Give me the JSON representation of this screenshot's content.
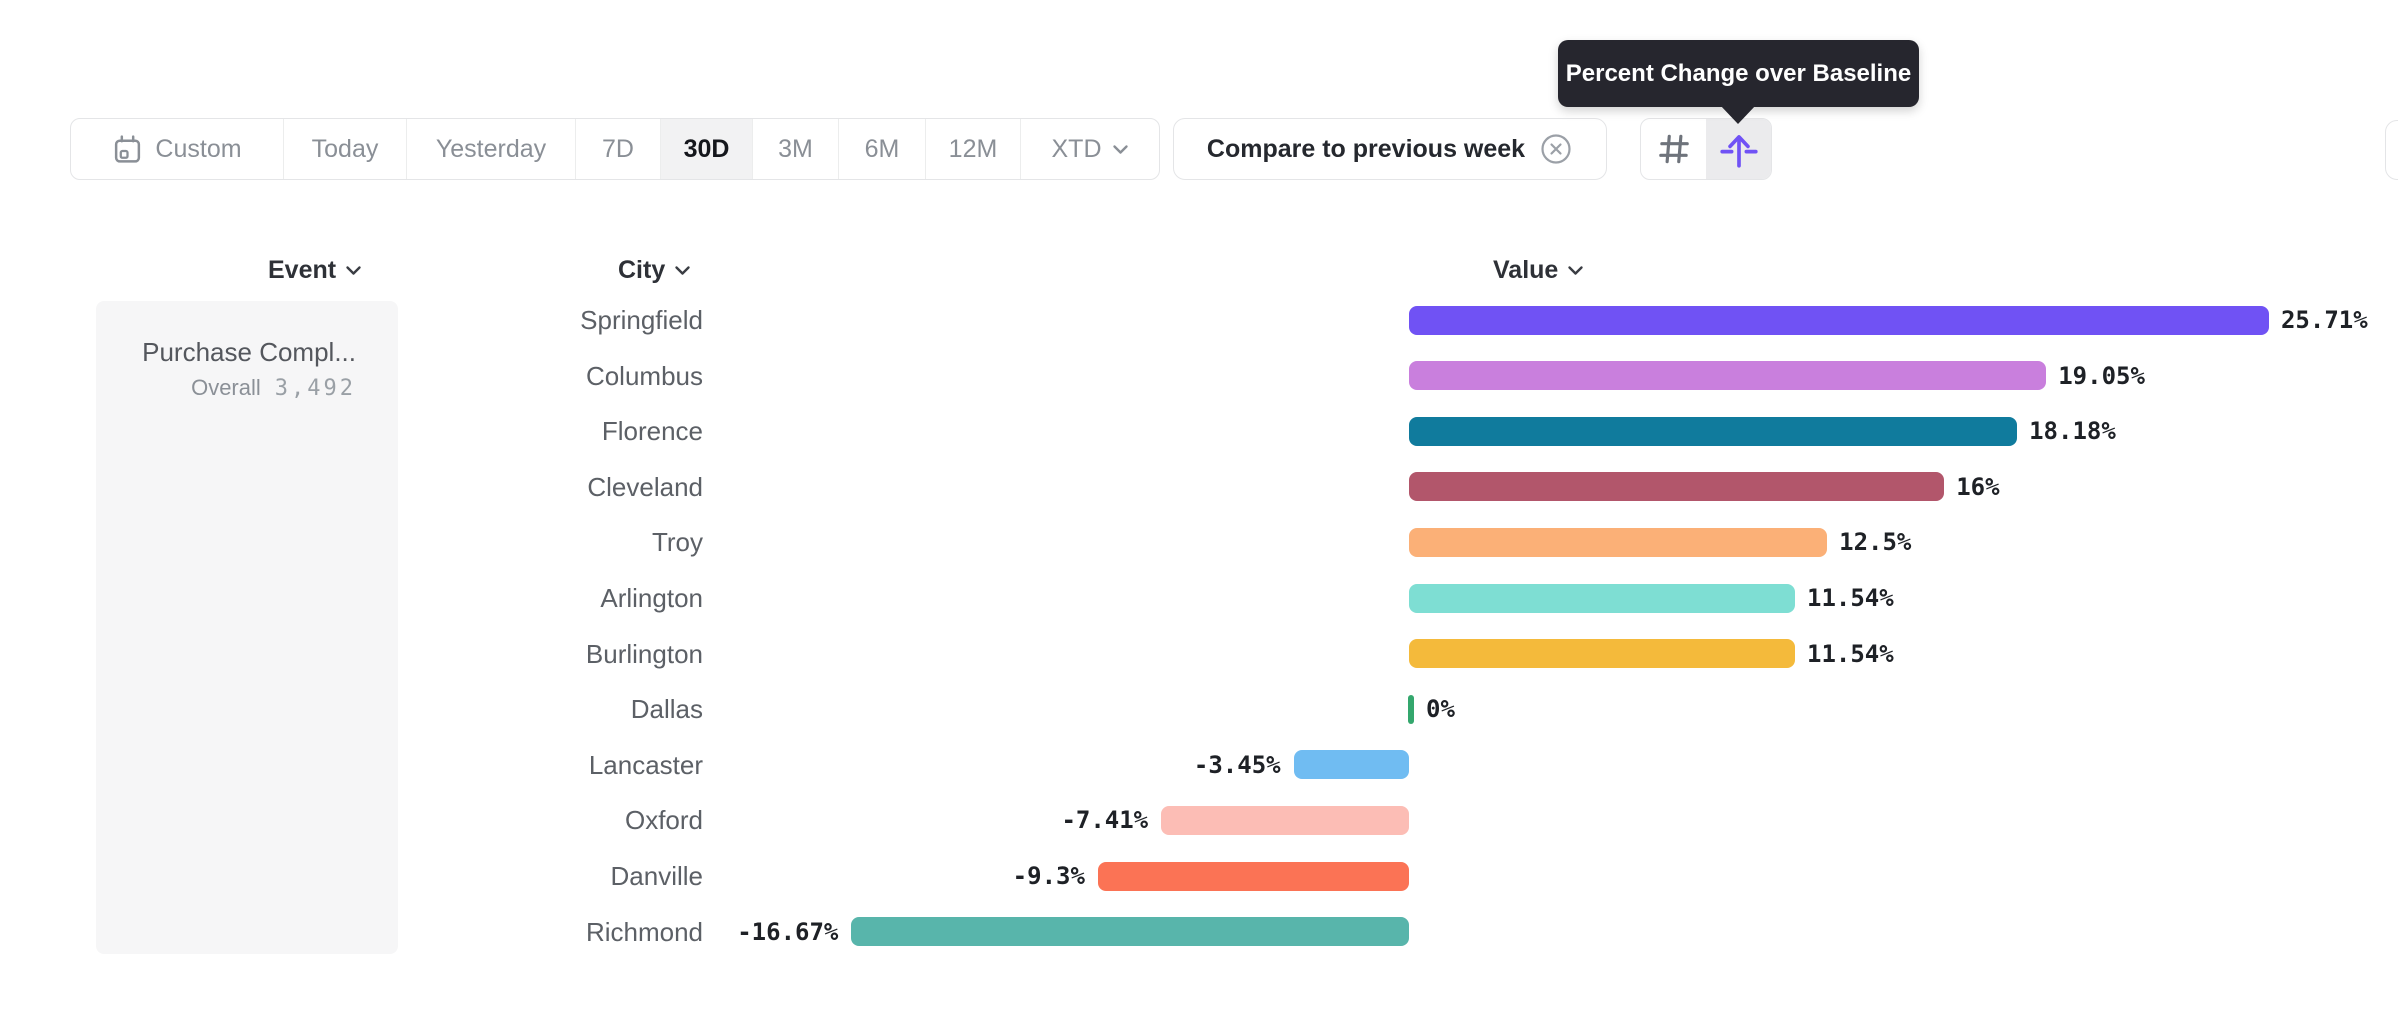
{
  "toolbar": {
    "date_ranges": [
      {
        "label": "Custom",
        "icon": "calendar-icon",
        "selected": false
      },
      {
        "label": "Today",
        "selected": false
      },
      {
        "label": "Yesterday",
        "selected": false
      },
      {
        "label": "7D",
        "selected": false
      },
      {
        "label": "30D",
        "selected": true
      },
      {
        "label": "3M",
        "selected": false
      },
      {
        "label": "6M",
        "selected": false
      },
      {
        "label": "12M",
        "selected": false
      },
      {
        "label": "XTD",
        "selected": false,
        "chevron": "chevron-down-icon"
      }
    ],
    "compare": {
      "label": "Compare to previous week",
      "close_icon": "circle-x-icon"
    },
    "chart_mode_buttons": [
      {
        "icon": "hash-icon",
        "active": false
      },
      {
        "icon": "percent-change-baseline-icon",
        "active": true
      }
    ]
  },
  "tooltip": {
    "text": "Percent Change over Baseline"
  },
  "columns": {
    "event": "Event",
    "city": "City",
    "value": "Value"
  },
  "event_panel": {
    "event_name": "Purchase Compl...",
    "overall_label": "Overall",
    "overall_value": "3,492"
  },
  "chart_data": {
    "type": "bar",
    "orientation": "horizontal",
    "title": "Percent Change over Baseline",
    "value_unit": "%",
    "xlim": [
      -16.67,
      25.71
    ],
    "categories": [
      "Springfield",
      "Columbus",
      "Florence",
      "Cleveland",
      "Troy",
      "Arlington",
      "Burlington",
      "Dallas",
      "Lancaster",
      "Oxford",
      "Danville",
      "Richmond"
    ],
    "values": [
      25.71,
      19.05,
      18.18,
      16,
      12.5,
      11.54,
      11.54,
      0,
      -3.45,
      -7.41,
      -9.3,
      -16.67
    ],
    "labels": [
      "25.71%",
      "19.05%",
      "18.18%",
      "16%",
      "12.5%",
      "11.54%",
      "11.54%",
      "0%",
      "-3.45%",
      "-7.41%",
      "-9.3%",
      "-16.67%"
    ],
    "colors": [
      "#7052f4",
      "#c97fdd",
      "#107b9d",
      "#b2566b",
      "#fbb077",
      "#7eded3",
      "#f4ba3b",
      "#34a76d",
      "#70bcf2",
      "#fcbdb5",
      "#fb7355",
      "#58b5ab"
    ]
  },
  "ui_colors": {
    "accent_purple": "#7052f5",
    "tooltip_bg": "#26262e",
    "border": "#e4e5e7",
    "selected_segment_bg": "#f2f2f3",
    "muted_text": "#8a8f96",
    "dark_text": "#25282e",
    "panel_bg": "#f6f6f7"
  }
}
